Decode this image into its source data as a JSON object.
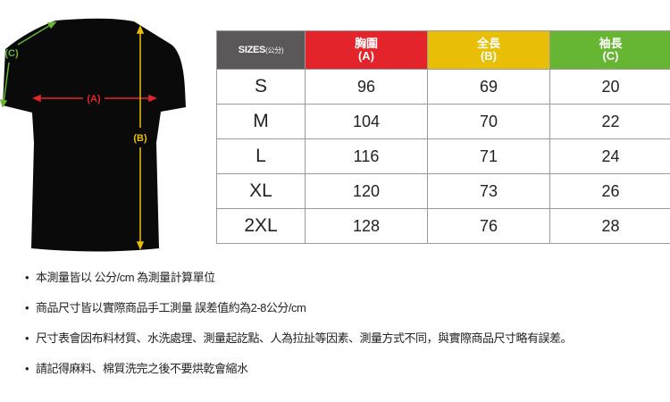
{
  "diagram": {
    "labels": {
      "a": "(A)",
      "b": "(B)",
      "c": "(C)"
    },
    "colors": {
      "a": "#e3242b",
      "b": "#e8bf06",
      "c": "#66b634",
      "shirt": "#0a0a0a"
    }
  },
  "table": {
    "headers": [
      {
        "title": "SIZES",
        "sub": "(公分)"
      },
      {
        "title": "胸圍",
        "sub": "(A)"
      },
      {
        "title": "全長",
        "sub": "(B)"
      },
      {
        "title": "袖長",
        "sub": "(C)"
      }
    ],
    "rows": [
      [
        "S",
        "96",
        "69",
        "20"
      ],
      [
        "M",
        "104",
        "70",
        "22"
      ],
      [
        "L",
        "116",
        "71",
        "24"
      ],
      [
        "XL",
        "120",
        "73",
        "26"
      ],
      [
        "2XL",
        "128",
        "76",
        "28"
      ]
    ]
  },
  "notes": [
    "本測量皆以 公分/cm 為測量計算單位",
    "商品尺寸皆以實際商品手工測量 誤差值約為2-8公分/cm",
    "尺寸表會因布料材質、水洗處理、測量起訖點、人為拉扯等因素、測量方式不同，與實際商品尺寸略有誤差。",
    "請記得麻料、棉質洗完之後不要烘乾會縮水"
  ],
  "bullet": "•"
}
